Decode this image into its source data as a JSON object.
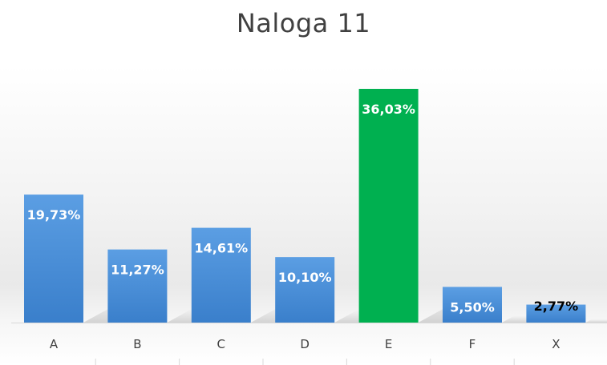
{
  "chart_data": {
    "type": "bar",
    "title": "Naloga 11",
    "categories": [
      "A",
      "B",
      "C",
      "D",
      "E",
      "F",
      "X"
    ],
    "values": [
      19.73,
      11.27,
      14.61,
      10.1,
      36.03,
      5.5,
      2.77
    ],
    "data_labels": [
      "19,73%",
      "11,27%",
      "14,61%",
      "10,10%",
      "36,03%",
      "5,50%",
      "2,77%"
    ],
    "ylim": [
      0,
      36.03
    ],
    "grid": false,
    "legend": "none"
  },
  "colors": {
    "bar_default": "#4a8fd9",
    "bar_highlight": "#00b050",
    "label_on_bar": "#ffffff",
    "label_dark": "#000000"
  },
  "highlight_index": 4
}
